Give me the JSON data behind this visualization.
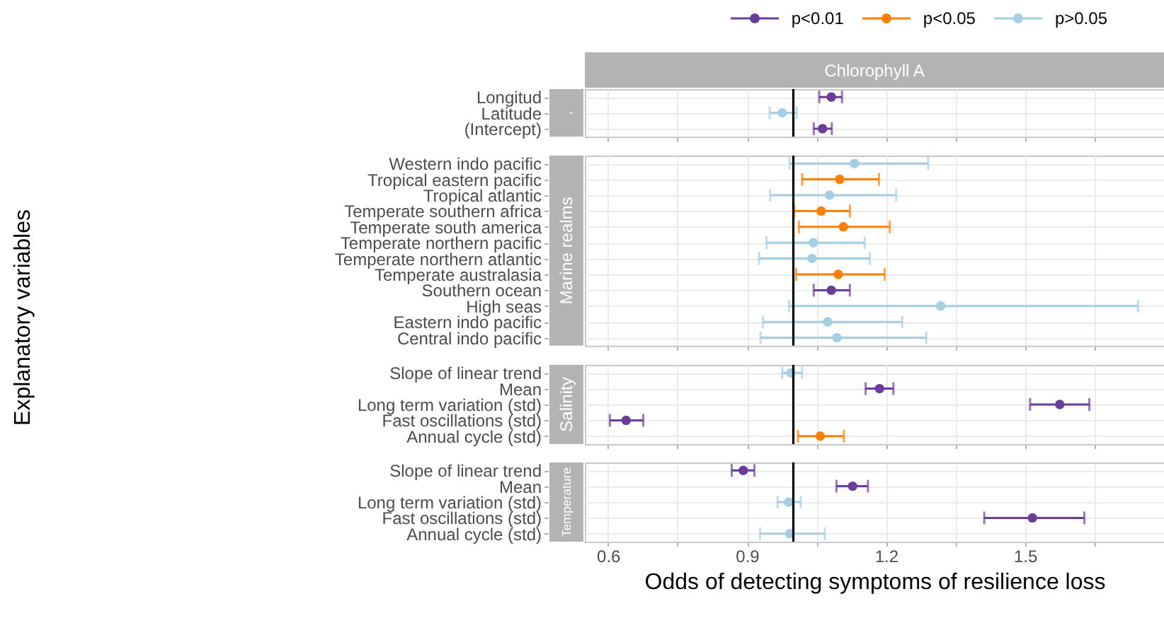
{
  "chart_data": [
    {
      "type": "scatter",
      "orientation": "horizontal",
      "title": "Chlorophyll A",
      "subtitle": ".",
      "ylabel": "Explanatory variables",
      "categories": [
        "Longitud",
        "Latitude",
        "(Intercept)"
      ],
      "series": [
        {
          "name": "p<0.01",
          "color": "#6a3d9a",
          "values": [
            1.082,
            null,
            1.063
          ],
          "errors": [
            [
              1.056,
              1.105
            ],
            null,
            [
              1.044,
              1.083
            ]
          ]
        },
        {
          "name": "p>0.05",
          "color": "#a6cee3",
          "values": [
            null,
            0.976,
            null
          ],
          "errors": [
            null,
            [
              0.949,
              1.007
            ],
            null
          ]
        }
      ],
      "xlim": [
        0.55,
        1.8
      ],
      "xticks": [
        0.6,
        {
          "value": 0.75,
          "label": null
        },
        0.9,
        {
          "value": 1.05,
          "label": null
        },
        1.2,
        {
          "value": 1.35,
          "label": null
        },
        1.5,
        {
          "value": 1.65,
          "label": null
        }
      ],
      "ref_lines": [
        {
          "axis": "x",
          "value": 1,
          "color": "#000000"
        }
      ],
      "grid": true,
      "legend": "top",
      "marker": "circle",
      "tick_labels": "y"
    },
    {
      "type": "scatter",
      "orientation": "horizontal",
      "subtitle": "Marine realms",
      "categories": [
        "Western indo pacific",
        "Tropical eastern pacific",
        "Tropical atlantic",
        "Temperate southern africa",
        "Temperate south america",
        "Temperate northern pacific",
        "Temperate northern atlantic",
        "Temperate australasia",
        "Southern ocean",
        "High seas",
        "Eastern indo pacific",
        "Central indo pacific"
      ],
      "series": [
        {
          "name": "p<0.01",
          "color": "#6a3d9a",
          "values": [
            null,
            null,
            null,
            null,
            null,
            null,
            null,
            null,
            1.082,
            null,
            null,
            null
          ],
          "errors": [
            null,
            null,
            null,
            null,
            null,
            null,
            null,
            null,
            [
              1.044,
              1.122
            ],
            null,
            null,
            null
          ]
        },
        {
          "name": "p<0.05",
          "color": "#ff7f00",
          "values": [
            null,
            1.1,
            null,
            1.06,
            1.108,
            null,
            null,
            1.097,
            null,
            null,
            null,
            null
          ],
          "errors": [
            null,
            [
              1.019,
              1.185
            ],
            null,
            [
              1.002,
              1.122
            ],
            [
              1.012,
              1.208
            ],
            null,
            null,
            [
              1.006,
              1.197
            ],
            null,
            null,
            null,
            null
          ]
        },
        {
          "name": "p>0.05",
          "color": "#a6cee3",
          "values": [
            1.132,
            null,
            1.078,
            null,
            null,
            1.043,
            1.04,
            null,
            null,
            1.318,
            1.074,
            1.094
          ],
          "errors": [
            [
              0.992,
              1.291
            ],
            null,
            [
              0.95,
              1.222
            ],
            null,
            null,
            [
              0.942,
              1.154
            ],
            [
              0.926,
              1.165
            ],
            null,
            null,
            [
              0.991,
              1.744
            ],
            [
              0.934,
              1.235
            ],
            [
              0.929,
              1.287
            ]
          ]
        }
      ],
      "xlim": [
        0.55,
        1.8
      ],
      "xticks": [
        0.6,
        {
          "value": 0.75,
          "label": null
        },
        0.9,
        {
          "value": 1.05,
          "label": null
        },
        1.2,
        {
          "value": 1.35,
          "label": null
        },
        1.5,
        {
          "value": 1.65,
          "label": null
        }
      ],
      "ref_lines": [
        {
          "axis": "x",
          "value": 1,
          "color": "#000000"
        }
      ],
      "grid": true,
      "marker": "circle",
      "tick_labels": "y"
    },
    {
      "type": "scatter",
      "orientation": "horizontal",
      "subtitle": "Salinity",
      "categories": [
        "Slope of linear trend",
        "Mean",
        "Long term variation (std)",
        "Fast oscillations (std)",
        "Annual cycle (std)"
      ],
      "series": [
        {
          "name": "p<0.01",
          "color": "#6a3d9a",
          "values": [
            null,
            1.186,
            1.575,
            0.639,
            null
          ],
          "errors": [
            null,
            [
              1.156,
              1.216
            ],
            [
              1.511,
              1.639
            ],
            [
              0.604,
              0.676
            ],
            null
          ]
        },
        {
          "name": "p<0.05",
          "color": "#ff7f00",
          "values": [
            null,
            null,
            null,
            null,
            1.058
          ],
          "errors": [
            null,
            null,
            null,
            null,
            [
              1.01,
              1.109
            ]
          ]
        },
        {
          "name": "p>0.05",
          "color": "#a6cee3",
          "values": [
            0.995,
            null,
            null,
            null,
            null
          ],
          "errors": [
            [
              0.976,
              1.019
            ],
            null,
            null,
            null,
            null
          ]
        }
      ],
      "xlim": [
        0.55,
        1.8
      ],
      "xticks": [
        0.6,
        {
          "value": 0.75,
          "label": null
        },
        0.9,
        {
          "value": 1.05,
          "label": null
        },
        1.2,
        {
          "value": 1.35,
          "label": null
        },
        1.5,
        {
          "value": 1.65,
          "label": null
        }
      ],
      "ref_lines": [
        {
          "axis": "x",
          "value": 1,
          "color": "#000000"
        }
      ],
      "grid": true,
      "marker": "circle",
      "tick_labels": "y"
    },
    {
      "type": "scatter",
      "orientation": "horizontal",
      "subtitle": "Temperature",
      "xlabel": "Odds of detecting symptoms of resilience loss",
      "categories": [
        "Slope of linear trend",
        "Mean",
        "Long term variation (std)",
        "Fast oscillations (std)",
        "Annual cycle (std)"
      ],
      "series": [
        {
          "name": "p<0.01",
          "color": "#6a3d9a",
          "values": [
            0.892,
            1.128,
            null,
            1.516,
            null
          ],
          "errors": [
            [
              0.867,
              0.916
            ],
            [
              1.093,
              1.161
            ],
            null,
            [
              1.412,
              1.628
            ],
            null
          ]
        },
        {
          "name": "p>0.05",
          "color": "#a6cee3",
          "values": [
            null,
            null,
            0.99,
            null,
            0.992
          ],
          "errors": [
            null,
            null,
            [
              0.966,
              1.016
            ],
            null,
            [
              0.928,
              1.068
            ]
          ]
        }
      ],
      "xlim": [
        0.55,
        1.8
      ],
      "xticks": [
        0.6,
        {
          "value": 0.75,
          "label": null
        },
        0.9,
        {
          "value": 1.05,
          "label": null
        },
        1.2,
        {
          "value": 1.35,
          "label": null
        },
        1.5,
        {
          "value": 1.65,
          "label": null
        }
      ],
      "ref_lines": [
        {
          "axis": "x",
          "value": 1,
          "color": "#000000"
        }
      ],
      "grid": true,
      "marker": "circle"
    }
  ]
}
